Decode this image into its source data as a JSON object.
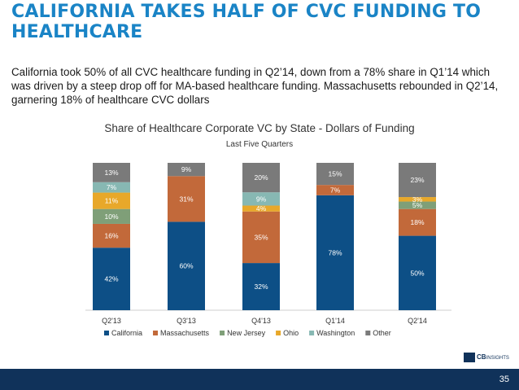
{
  "slide": {
    "title": "CALIFORNIA TAKES HALF OF CVC FUNDING TO HEALTHCARE",
    "subtitle": "California took 50% of all CVC healthcare funding in Q2’14, down from a 78% share in Q1’14 which was driven by a steep drop off for MA-based healthcare funding. Massachusetts rebounded in Q2’14, garnering 18% of healthcare CVC dollars",
    "page_number": "35",
    "logo": {
      "main": "CB",
      "small": "INSIGHTS"
    }
  },
  "chart_data": {
    "type": "bar",
    "stacked": true,
    "percent": true,
    "title": "Share of Healthcare Corporate VC by State - Dollars of Funding",
    "subtitle": "Last Five Quarters",
    "categories": [
      "Q2'13",
      "Q3'13",
      "Q4'13",
      "Q1'14",
      "Q2'14"
    ],
    "ylim": [
      0,
      100
    ],
    "legend": "bottom",
    "series": [
      {
        "name": "California",
        "color": "#0d4f86",
        "values": [
          42,
          60,
          32,
          78,
          50
        ]
      },
      {
        "name": "Massachusetts",
        "color": "#c2693a",
        "values": [
          16,
          31,
          35,
          7,
          18
        ]
      },
      {
        "name": "New Jersey",
        "color": "#7f9f78",
        "values": [
          10,
          0,
          0,
          0,
          5
        ]
      },
      {
        "name": "Ohio",
        "color": "#e8a82a",
        "values": [
          11,
          0,
          4,
          0,
          3
        ]
      },
      {
        "name": "Washington",
        "color": "#87b8b3",
        "values": [
          7,
          0,
          9,
          0,
          0
        ]
      },
      {
        "name": "Other",
        "color": "#7a7a7a",
        "values": [
          13,
          9,
          20,
          15,
          23
        ]
      }
    ],
    "labels": [
      [
        "42%",
        "16%",
        "10%",
        "11%",
        "7%",
        "13%"
      ],
      [
        "60%",
        "31%",
        "",
        "",
        "",
        "9%"
      ],
      [
        "32%",
        "35%",
        "",
        "4%",
        "9%",
        "20%"
      ],
      [
        "78%",
        "7%",
        "",
        "",
        "",
        "15%"
      ],
      [
        "50%",
        "18%",
        "5%",
        "3%",
        "",
        "23%"
      ]
    ]
  }
}
